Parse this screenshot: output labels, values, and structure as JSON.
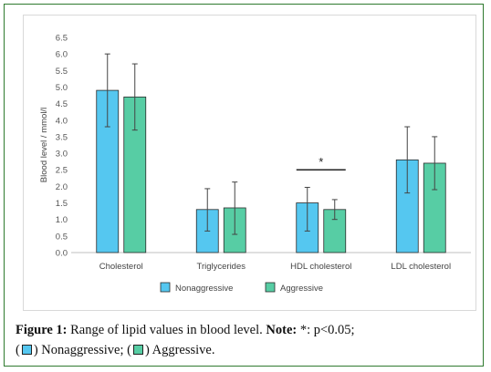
{
  "chart_data": {
    "type": "bar",
    "ylabel": "Blood level / mmol/l",
    "ylim": [
      0,
      6.5
    ],
    "yticks": [
      "0.0",
      "0.5",
      "1.0",
      "1.5",
      "2.0",
      "2.5",
      "3.0",
      "3.5",
      "4.0",
      "4.5",
      "5.0",
      "5.5",
      "6.0",
      "6.5"
    ],
    "categories": [
      "Cholesterol",
      "Triglycerides",
      "HDL cholesterol",
      "LDL cholesterol"
    ],
    "series": [
      {
        "name": "Nonaggressive",
        "color": "#55c7f0",
        "values": [
          4.9,
          1.3,
          1.5,
          2.8
        ],
        "err_low": [
          3.8,
          0.65,
          0.65,
          1.8
        ],
        "err_high": [
          6.0,
          1.93,
          1.97,
          3.8
        ]
      },
      {
        "name": "Aggressive",
        "color": "#57cda4",
        "values": [
          4.7,
          1.35,
          1.3,
          2.7
        ],
        "err_low": [
          3.7,
          0.55,
          1.0,
          1.9
        ],
        "err_high": [
          5.7,
          2.13,
          1.6,
          3.5
        ]
      }
    ],
    "annotation": {
      "text": "*",
      "category": "HDL cholesterol",
      "y": 2.5
    },
    "legend_position": "bottom"
  },
  "caption": {
    "label": "Figure 1:",
    "text": " Range of lipid values in blood level.",
    "note_label": "Note:",
    "note_text": " *: p<0.05;",
    "line2_a": "(",
    "line2_b": ") Nonaggressive; (",
    "line2_c": ") Aggressive."
  }
}
